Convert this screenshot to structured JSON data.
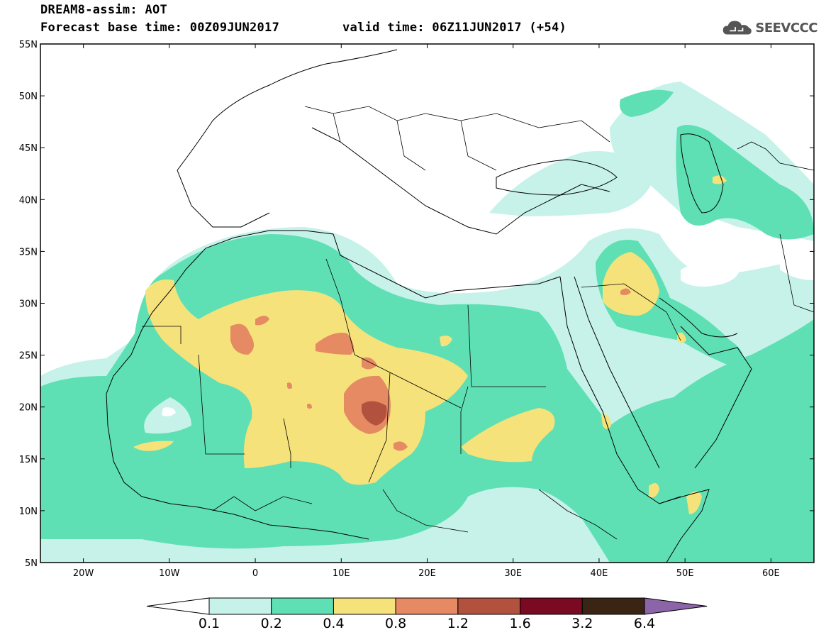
{
  "header": {
    "title": "DREAM8-assim: AOT",
    "base_time": "Forecast base time: 00Z09JUN2017",
    "valid_time": "valid time: 06Z11JUN2017 (+54)"
  },
  "logo": {
    "icon": "cloud-icon",
    "text": "SEEVCCC"
  },
  "map": {
    "lat_labels": [
      "55N",
      "50N",
      "45N",
      "40N",
      "35N",
      "30N",
      "25N",
      "20N",
      "15N",
      "10N",
      "5N"
    ],
    "lon_labels": [
      "20W",
      "10W",
      "0",
      "10E",
      "20E",
      "30E",
      "40E",
      "50E",
      "60E"
    ],
    "lat_range": [
      5,
      55
    ],
    "lon_range": [
      -25,
      65
    ]
  },
  "legend": {
    "thresholds": [
      "0.1",
      "0.2",
      "0.4",
      "0.8",
      "1.2",
      "1.6",
      "3.2",
      "6.4"
    ],
    "colors": [
      "#ffffff",
      "#c6f2ea",
      "#5fe0b4",
      "#f6e27a",
      "#e58a62",
      "#b2523e",
      "#7a0a22",
      "#3a2414",
      "#8c64a8"
    ]
  },
  "colors": {
    "aot_0_1": "#c6f2ea",
    "aot_0_2": "#5fe0b4",
    "aot_0_4": "#f6e27a",
    "aot_0_8": "#e58a62",
    "aot_1_2": "#b2523e"
  }
}
